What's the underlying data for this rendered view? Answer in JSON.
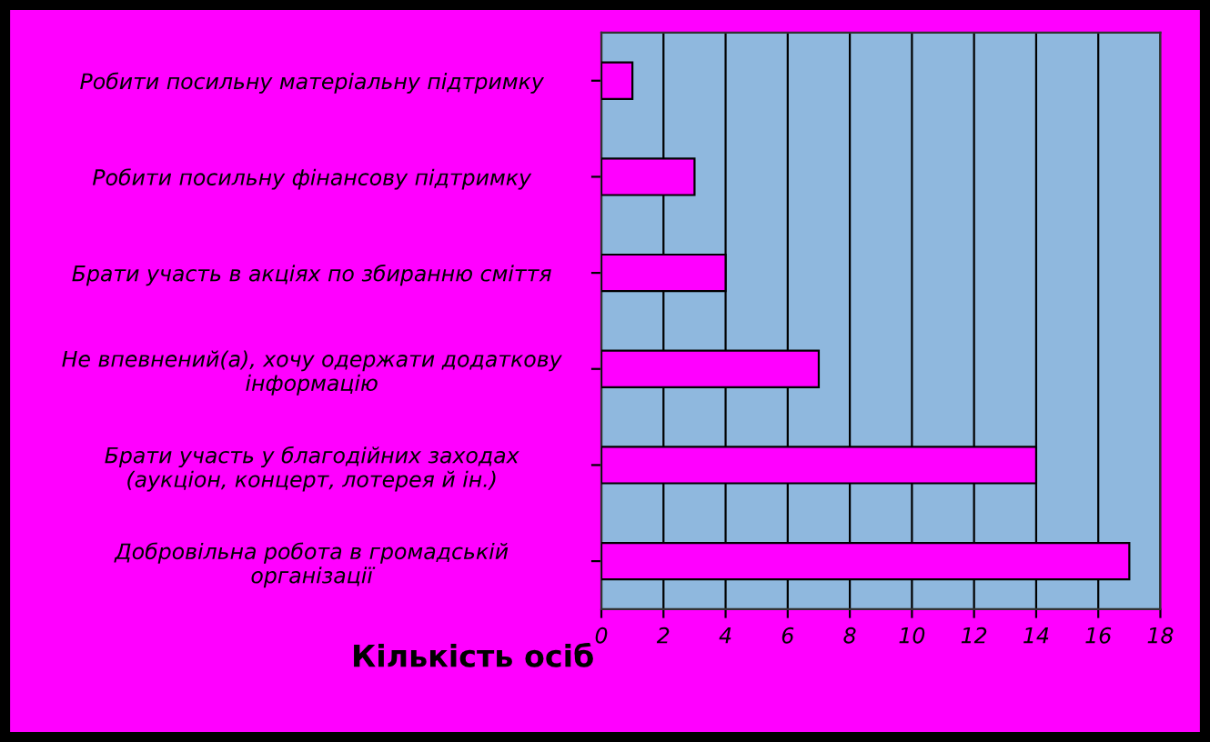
{
  "chart_data": {
    "type": "bar",
    "orientation": "horizontal",
    "xlabel": "Кількість осіб",
    "categories": [
      "Робити посильну матеріальну підтримку",
      "Робити посильну фінансову підтримку",
      "Брати участь в акціях по збиранню сміття",
      "Не впевнений(а), хочу одержати додаткову\nінформацію",
      "Брати участь у благодійних заходах\n(аукціон, концерт, лотерея й ін.)",
      "Добровільна робота в громадській\nорганізації"
    ],
    "values": [
      1,
      3,
      4,
      7,
      14,
      17
    ],
    "color": "#ff00ff",
    "xlim": [
      0,
      18
    ],
    "xticks": [
      0,
      2,
      4,
      6,
      8,
      10,
      12,
      14,
      16,
      18
    ],
    "grid": "x",
    "legend": false
  }
}
